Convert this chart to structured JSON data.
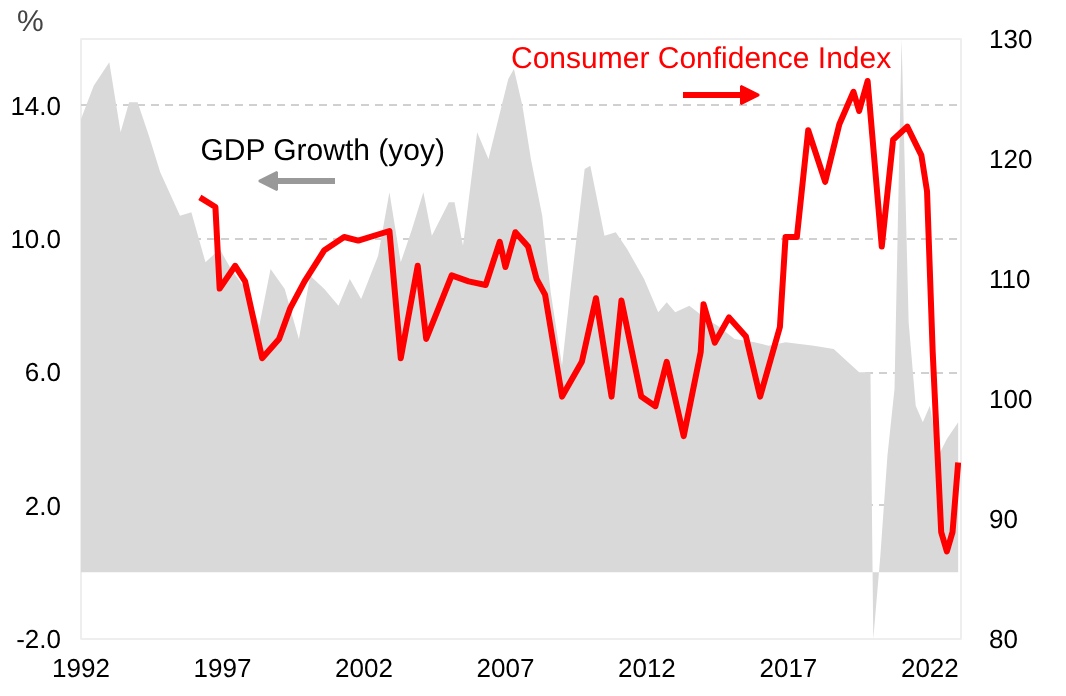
{
  "chart_data": {
    "type": "area",
    "ylabel": "%",
    "xlim": [
      1992,
      2023.1
    ],
    "ylim": [
      -2,
      16
    ],
    "y2lim": [
      80,
      130
    ],
    "xticks": [
      1992,
      1997,
      2002,
      2007,
      2012,
      2017,
      2022
    ],
    "yticks": [
      {
        "value": -2,
        "label": "-2.0"
      },
      {
        "value": 2,
        "label": "2.0"
      },
      {
        "value": 6,
        "label": "6.0"
      },
      {
        "value": 10,
        "label": "10.0"
      },
      {
        "value": 14,
        "label": "14.0"
      }
    ],
    "y2ticks": [
      80,
      90,
      100,
      110,
      120,
      130
    ],
    "grid": "y",
    "legend": false,
    "series": [
      {
        "name": "GDP Growth (yoy)",
        "color": "#d9d9d9",
        "x": [
          1992.0,
          1992.45,
          1993.0,
          1993.4,
          1993.7,
          1994.0,
          1994.4,
          1994.8,
          1995.5,
          1995.9,
          1996.4,
          1996.9,
          1997.3,
          1997.9,
          1998.3,
          1998.7,
          1999.2,
          1999.7,
          2000.1,
          2000.6,
          2001.1,
          2001.5,
          2001.9,
          2002.5,
          2002.9,
          2003.3,
          2003.7,
          2004.1,
          2004.4,
          2005.0,
          2005.2,
          2005.5,
          2006.0,
          2006.4,
          2007.1,
          2007.3,
          2007.6,
          2007.9,
          2008.3,
          2008.6,
          2009.0,
          2009.3,
          2009.8,
          2010.0,
          2010.5,
          2010.9,
          2011.3,
          2011.9,
          2012.4,
          2012.7,
          2013.0,
          2013.5,
          2014.1,
          2014.5,
          2015.1,
          2015.8,
          2016.3,
          2016.9,
          2017.9,
          2018.6,
          2019.5,
          2019.9,
          2020.0,
          2020.25,
          2020.5,
          2020.75,
          2021.0,
          2021.25,
          2021.5,
          2021.75,
          2022.0,
          2022.3,
          2022.6,
          2023.0
        ],
        "values": [
          13.6,
          14.6,
          15.3,
          13.2,
          14.1,
          14.1,
          13.1,
          12.0,
          10.7,
          10.8,
          9.3,
          9.7,
          9.1,
          8.4,
          7.4,
          9.1,
          8.5,
          7.0,
          8.9,
          8.5,
          8.0,
          8.8,
          8.2,
          9.5,
          11.4,
          9.3,
          10.3,
          11.4,
          10.1,
          11.1,
          11.1,
          9.8,
          13.2,
          12.4,
          14.8,
          15.1,
          14.0,
          12.4,
          10.7,
          8.4,
          6.2,
          8.5,
          12.1,
          12.2,
          10.1,
          10.2,
          9.7,
          8.8,
          7.8,
          8.1,
          7.8,
          8.0,
          7.6,
          7.4,
          7.0,
          6.9,
          6.8,
          6.9,
          6.8,
          6.7,
          6.0,
          6.0,
          -2.0,
          0.5,
          3.5,
          5.5,
          16.0,
          7.5,
          5.0,
          4.5,
          5.0,
          3.5,
          4.0,
          4.5
        ]
      },
      {
        "name": "Consumer Confidence Index",
        "type": "line",
        "color": "#ff0000",
        "axis": "y2",
        "x": [
          1996.2,
          1996.75,
          1996.9,
          1997.45,
          1997.8,
          1998.4,
          1999.0,
          1999.4,
          1999.9,
          2000.6,
          2001.3,
          2001.8,
          2002.9,
          2003.3,
          2003.9,
          2004.2,
          2005.1,
          2005.7,
          2006.3,
          2006.8,
          2007.0,
          2007.35,
          2007.8,
          2008.1,
          2008.4,
          2009.0,
          2009.7,
          2010.2,
          2010.75,
          2011.1,
          2011.8,
          2012.3,
          2012.7,
          2013.3,
          2013.9,
          2014.0,
          2014.4,
          2014.9,
          2015.5,
          2016.0,
          2016.7,
          2016.9,
          2017.3,
          2017.7,
          2018.3,
          2018.8,
          2019.3,
          2019.5,
          2019.8,
          2020.3,
          2020.7,
          2021.2,
          2021.7,
          2021.9,
          2022.1,
          2022.4,
          2022.6,
          2022.8,
          2023.0
        ],
        "values": [
          116.8,
          116.0,
          109.2,
          111.1,
          109.8,
          103.4,
          105.0,
          107.6,
          109.8,
          112.4,
          113.5,
          113.2,
          114.0,
          103.4,
          111.1,
          105.0,
          110.3,
          109.8,
          109.5,
          113.1,
          111.0,
          113.9,
          112.7,
          110.0,
          108.7,
          100.2,
          103.1,
          108.4,
          100.2,
          108.2,
          100.2,
          99.4,
          103.1,
          96.9,
          103.9,
          107.9,
          104.7,
          106.8,
          105.2,
          100.2,
          106.0,
          113.5,
          113.5,
          122.4,
          118.1,
          122.9,
          125.6,
          124.0,
          126.5,
          112.7,
          121.6,
          122.7,
          120.3,
          117.3,
          103.9,
          88.9,
          87.3,
          88.9,
          94.7
        ]
      }
    ]
  }
}
